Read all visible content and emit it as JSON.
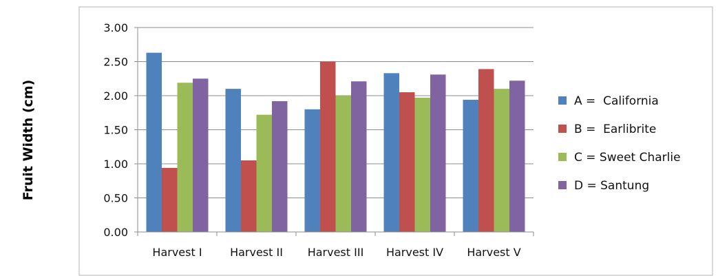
{
  "chart_data": {
    "type": "bar",
    "ylabel": "Fruit Width (cm)",
    "xlabel": "",
    "ylim": [
      0,
      3
    ],
    "yticks": [
      "0.00",
      "0.50",
      "1.00",
      "1.50",
      "2.00",
      "2.50",
      "3.00"
    ],
    "grid": "horizontal",
    "legend_position": "right",
    "categories": [
      "Harvest I",
      "Harvest II",
      "Harvest III",
      "Harvest IV",
      "Harvest V"
    ],
    "series": [
      {
        "name": "A =  California",
        "color": "#4F81BD",
        "values": [
          2.63,
          2.1,
          1.8,
          2.33,
          1.94
        ]
      },
      {
        "name": "B =  Earlibrite",
        "color": "#C0504D",
        "values": [
          0.94,
          1.05,
          2.5,
          2.05,
          2.39
        ]
      },
      {
        "name": "C = Sweet Charlie",
        "color": "#9BBB59",
        "values": [
          2.19,
          1.72,
          2.0,
          1.97,
          2.1
        ]
      },
      {
        "name": "D = Santung",
        "color": "#8064A2",
        "values": [
          2.25,
          1.92,
          2.21,
          2.31,
          2.22
        ]
      }
    ]
  }
}
